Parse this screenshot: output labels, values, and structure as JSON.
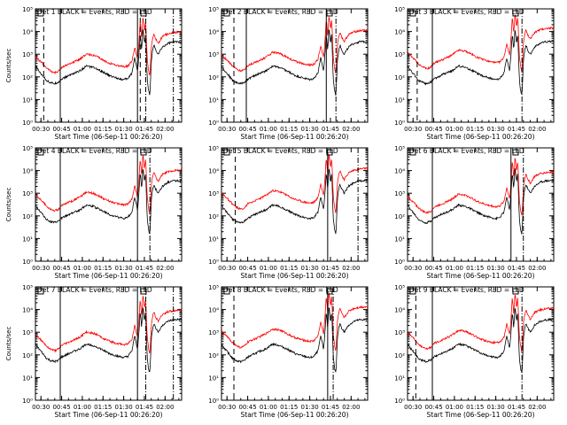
{
  "figure": {
    "start_time_label": "Start Time (06-Sep-11 00:26:20)",
    "ylabel": "Counts/sec"
  },
  "chart_data": {
    "type": "line",
    "layout": "3x3 grid",
    "x_unit": "time of day (HH:MM)",
    "xlim": [
      "00:26",
      "02:12"
    ],
    "x_ticks": [
      "00:30",
      "00:45",
      "01:00",
      "01:15",
      "01:30",
      "01:45",
      "02:00"
    ],
    "y_scale": "log",
    "ylim": [
      1,
      100000
    ],
    "y_tick_labels": [
      "10⁰",
      "10¹",
      "10²",
      "10³",
      "10⁴",
      "10⁵"
    ],
    "y_tick_exponents": [
      0,
      1,
      2,
      3,
      4,
      5
    ],
    "series_colors": {
      "events": "#000000",
      "lld": "#ff0000"
    },
    "title_text": {
      "pre": "Det ",
      "post": " BLACK = Events, RED = LLD"
    },
    "profile_times": [
      "00:26",
      "00:28",
      "00:31",
      "00:34",
      "00:37",
      "00:40",
      "00:43",
      "00:45",
      "00:47",
      "00:52",
      "00:58",
      "01:03",
      "01:08",
      "01:12",
      "01:16",
      "01:20",
      "01:25",
      "01:30",
      "01:33",
      "01:36",
      "01:38",
      "01:40",
      "01:41",
      "01:42",
      "01:43",
      "01:44",
      "01:45",
      "01:46",
      "01:47",
      "01:48",
      "01:49",
      "01:50",
      "01:51",
      "01:52",
      "01:53",
      "01:55",
      "01:58",
      "02:02",
      "02:06",
      "02:10"
    ],
    "lld_profile": [
      800,
      600,
      400,
      250,
      180,
      150,
      180,
      260,
      300,
      400,
      600,
      1000,
      900,
      700,
      500,
      400,
      320,
      280,
      300,
      500,
      2000,
      600,
      3000,
      30000,
      5000,
      50000,
      10000,
      30000,
      600,
      200,
      100,
      2000,
      5000,
      8000,
      5000,
      3000,
      6000,
      8000,
      9000,
      9500
    ],
    "events_profile": [
      300,
      200,
      120,
      70,
      55,
      50,
      60,
      80,
      90,
      130,
      180,
      300,
      260,
      200,
      150,
      110,
      90,
      75,
      85,
      150,
      700,
      180,
      900,
      8000,
      1500,
      15000,
      3000,
      8000,
      80,
      25,
      15,
      500,
      1500,
      2500,
      1600,
      1000,
      2000,
      3000,
      3500,
      3600
    ],
    "panels": [
      {
        "det": 1,
        "lld_scale": 1.0,
        "events_scale": 1.0,
        "dashed": [
          "00:32",
          "01:42"
        ],
        "solid": [
          "00:44",
          "01:40"
        ],
        "dashdot": [
          "01:46",
          "02:06"
        ]
      },
      {
        "det": 2,
        "lld_scale": 1.2,
        "events_scale": 1.0,
        "dashed": [
          "00:35"
        ],
        "solid": [
          "00:44",
          "01:42"
        ],
        "dashdot": [
          "01:49"
        ]
      },
      {
        "det": 3,
        "lld_scale": 1.5,
        "events_scale": 1.0,
        "dashed": [
          "00:33"
        ],
        "solid": [
          "00:44"
        ],
        "dashdot": [
          "01:49"
        ]
      },
      {
        "det": 4,
        "lld_scale": 1.1,
        "events_scale": 1.0,
        "dashed": [],
        "solid": [
          "00:44",
          "01:40"
        ],
        "dashdot": [
          "01:49"
        ]
      },
      {
        "det": 5,
        "lld_scale": 1.3,
        "events_scale": 1.0,
        "dashed": [
          "00:36"
        ],
        "solid": [
          "01:43"
        ],
        "dashdot": [
          "02:05"
        ]
      },
      {
        "det": 6,
        "lld_scale": 0.9,
        "events_scale": 1.0,
        "dashed": [],
        "solid": [
          "00:44",
          "01:41"
        ],
        "dashdot": [
          "01:50"
        ]
      },
      {
        "det": 7,
        "lld_scale": 1.0,
        "events_scale": 1.0,
        "dashed": [],
        "solid": [
          "00:44",
          "01:40"
        ],
        "dashdot": [
          "01:46",
          "02:06"
        ]
      },
      {
        "det": 8,
        "lld_scale": 1.4,
        "events_scale": 1.0,
        "dashed": [
          "00:35"
        ],
        "solid": [
          "01:43"
        ],
        "dashdot": [
          "01:47"
        ]
      },
      {
        "det": 9,
        "lld_scale": 1.2,
        "events_scale": 1.0,
        "dashed": [
          "00:32"
        ],
        "solid": [
          "00:44"
        ],
        "dashdot": [
          "01:49"
        ]
      }
    ]
  }
}
